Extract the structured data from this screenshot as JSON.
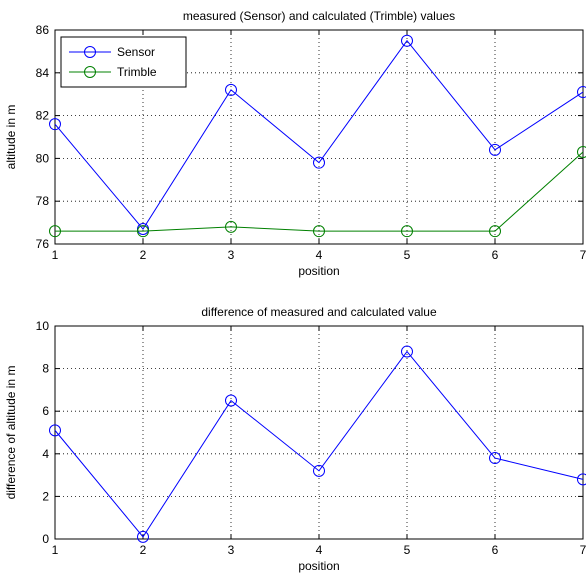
{
  "chart_data": [
    {
      "type": "line",
      "title": "measured (Sensor) and calculated (Trimble) values",
      "xlabel": "position",
      "ylabel": "altitude in m",
      "xlim": [
        1,
        7
      ],
      "ylim": [
        76,
        86
      ],
      "x_ticks": [
        1,
        2,
        3,
        4,
        5,
        6,
        7
      ],
      "y_ticks": [
        76,
        78,
        80,
        82,
        84,
        86
      ],
      "grid": true,
      "legend": "top-left",
      "x": [
        1,
        2,
        3,
        4,
        5,
        6,
        7
      ],
      "series": [
        {
          "name": "Sensor",
          "color": "#0000ff",
          "marker": "circle",
          "values": [
            81.6,
            76.7,
            83.2,
            79.8,
            85.5,
            80.4,
            83.1
          ]
        },
        {
          "name": "Trimble",
          "color": "#008000",
          "marker": "circle",
          "values": [
            76.6,
            76.6,
            76.8,
            76.6,
            76.6,
            76.6,
            80.3
          ]
        }
      ]
    },
    {
      "type": "line",
      "title": "difference of measured and calculated value",
      "xlabel": "position",
      "ylabel": "difference of altitude in m",
      "xlim": [
        1,
        7
      ],
      "ylim": [
        0,
        10
      ],
      "x_ticks": [
        1,
        2,
        3,
        4,
        5,
        6,
        7
      ],
      "y_ticks": [
        0,
        2,
        4,
        6,
        8,
        10
      ],
      "grid": true,
      "x": [
        1,
        2,
        3,
        4,
        5,
        6,
        7
      ],
      "series": [
        {
          "color": "#0000ff",
          "marker": "circle",
          "values": [
            5.1,
            0.1,
            6.5,
            3.2,
            8.8,
            3.8,
            2.8
          ]
        }
      ]
    }
  ]
}
